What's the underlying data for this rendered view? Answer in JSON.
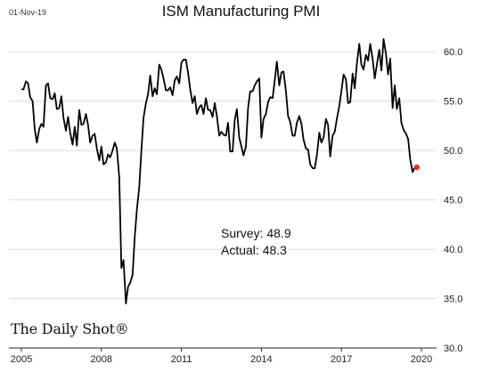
{
  "header": {
    "date": "01-Nov-19",
    "title": "ISM Manufacturing PMI"
  },
  "annotation": {
    "survey": "Survey: 48.9",
    "actual": "Actual:  48.3"
  },
  "source": "The Daily Shot®",
  "colors": {
    "line": "#000000",
    "marker": "#e8312f",
    "grid": "#dddddd"
  },
  "chart_data": {
    "type": "line",
    "title": "ISM Manufacturing PMI",
    "xlabel": "",
    "ylabel": "",
    "xlim": [
      2005.0,
      2020.5
    ],
    "ylim": [
      30.0,
      62.0
    ],
    "x_ticks": [
      2005,
      2008,
      2011,
      2014,
      2017,
      2020
    ],
    "y_ticks": [
      30.0,
      35.0,
      40.0,
      45.0,
      50.0,
      55.0,
      60.0
    ],
    "y_axis_side": "right",
    "grid": "horizontal",
    "series": [
      {
        "x": [
          2005.0,
          2005.08,
          2005.17,
          2005.25,
          2005.33,
          2005.42,
          2005.5,
          2005.58,
          2005.67,
          2005.75,
          2005.83,
          2005.92,
          2006.0,
          2006.08,
          2006.17,
          2006.25,
          2006.33,
          2006.42,
          2006.5,
          2006.58,
          2006.67,
          2006.75,
          2006.83,
          2006.92,
          2007.0,
          2007.08,
          2007.17,
          2007.25,
          2007.33,
          2007.42,
          2007.5,
          2007.58,
          2007.67,
          2007.75,
          2007.83,
          2007.92,
          2008.0,
          2008.08,
          2008.17,
          2008.25,
          2008.33,
          2008.42,
          2008.5,
          2008.58,
          2008.67,
          2008.75,
          2008.83,
          2008.92,
          2009.0,
          2009.08,
          2009.17,
          2009.25,
          2009.33,
          2009.42,
          2009.5,
          2009.58,
          2009.67,
          2009.75,
          2009.83,
          2009.92,
          2010.0,
          2010.08,
          2010.17,
          2010.25,
          2010.33,
          2010.42,
          2010.5,
          2010.58,
          2010.67,
          2010.75,
          2010.83,
          2010.92,
          2011.0,
          2011.08,
          2011.17,
          2011.25,
          2011.33,
          2011.42,
          2011.5,
          2011.58,
          2011.67,
          2011.75,
          2011.83,
          2011.92,
          2012.0,
          2012.08,
          2012.17,
          2012.25,
          2012.33,
          2012.42,
          2012.5,
          2012.58,
          2012.67,
          2012.75,
          2012.83,
          2012.92,
          2013.0,
          2013.08,
          2013.17,
          2013.25,
          2013.33,
          2013.42,
          2013.5,
          2013.58,
          2013.67,
          2013.75,
          2013.83,
          2013.92,
          2014.0,
          2014.08,
          2014.17,
          2014.25,
          2014.33,
          2014.42,
          2014.5,
          2014.58,
          2014.67,
          2014.75,
          2014.83,
          2014.92,
          2015.0,
          2015.08,
          2015.17,
          2015.25,
          2015.33,
          2015.42,
          2015.5,
          2015.58,
          2015.67,
          2015.75,
          2015.83,
          2015.92,
          2016.0,
          2016.08,
          2016.17,
          2016.25,
          2016.33,
          2016.42,
          2016.5,
          2016.58,
          2016.67,
          2016.75,
          2016.83,
          2016.92,
          2017.0,
          2017.08,
          2017.17,
          2017.25,
          2017.33,
          2017.42,
          2017.5,
          2017.58,
          2017.67,
          2017.75,
          2017.83,
          2017.92,
          2018.0,
          2018.08,
          2018.17,
          2018.25,
          2018.33,
          2018.42,
          2018.5,
          2018.58,
          2018.67,
          2018.75,
          2018.83,
          2018.92,
          2019.0,
          2019.08,
          2019.17,
          2019.25,
          2019.33,
          2019.42,
          2019.5,
          2019.58,
          2019.67,
          2019.75
        ],
        "y": [
          56.2,
          56.2,
          57.0,
          56.8,
          55.4,
          55.0,
          52.2,
          50.8,
          52.2,
          52.7,
          52.4,
          56.6,
          56.8,
          55.3,
          55.2,
          55.8,
          54.2,
          54.3,
          55.5,
          53.3,
          52.0,
          53.4,
          51.8,
          50.6,
          52.4,
          50.5,
          54.1,
          52.6,
          52.7,
          53.7,
          52.6,
          50.8,
          51.5,
          51.7,
          50.2,
          49.0,
          50.4,
          48.6,
          48.8,
          49.6,
          49.3,
          50.0,
          50.8,
          50.2,
          47.3,
          38.1,
          38.9,
          34.5,
          36.2,
          36.6,
          37.4,
          41.2,
          44.0,
          46.3,
          50.0,
          53.3,
          54.8,
          55.7,
          57.6,
          55.5,
          56.3,
          55.7,
          58.7,
          58.2,
          57.3,
          56.1,
          56.1,
          56.4,
          55.6,
          57.1,
          57.5,
          56.8,
          58.9,
          59.2,
          59.2,
          57.9,
          56.2,
          54.8,
          55.5,
          53.7,
          54.4,
          54.6,
          53.7,
          55.3,
          54.1,
          54.1,
          53.4,
          54.8,
          53.5,
          51.5,
          51.9,
          51.6,
          51.5,
          52.8,
          49.9,
          49.9,
          53.1,
          54.2,
          51.3,
          50.4,
          49.5,
          50.4,
          54.3,
          56.0,
          56.0,
          56.6,
          57.0,
          57.3,
          51.3,
          53.2,
          53.7,
          54.9,
          55.4,
          55.3,
          57.1,
          59.0,
          56.6,
          57.9,
          58.0,
          56.0,
          53.5,
          52.9,
          51.5,
          51.5,
          52.8,
          53.5,
          52.7,
          51.1,
          50.2,
          50.1,
          48.6,
          48.2,
          48.2,
          49.5,
          51.8,
          50.8,
          51.3,
          53.2,
          52.6,
          49.4,
          51.5,
          51.9,
          53.2,
          54.5,
          56.0,
          57.7,
          57.2,
          54.8,
          54.9,
          57.8,
          56.3,
          58.8,
          60.8,
          58.7,
          58.2,
          59.7,
          59.1,
          60.8,
          59.3,
          57.3,
          58.7,
          60.2,
          58.1,
          61.3,
          59.8,
          57.7,
          59.3,
          54.3,
          56.6,
          54.2,
          55.3,
          52.8,
          52.1,
          51.7,
          51.2,
          49.1,
          47.8,
          48.3
        ]
      }
    ],
    "highlight_point": {
      "x": 2019.83,
      "y": 48.3
    }
  }
}
